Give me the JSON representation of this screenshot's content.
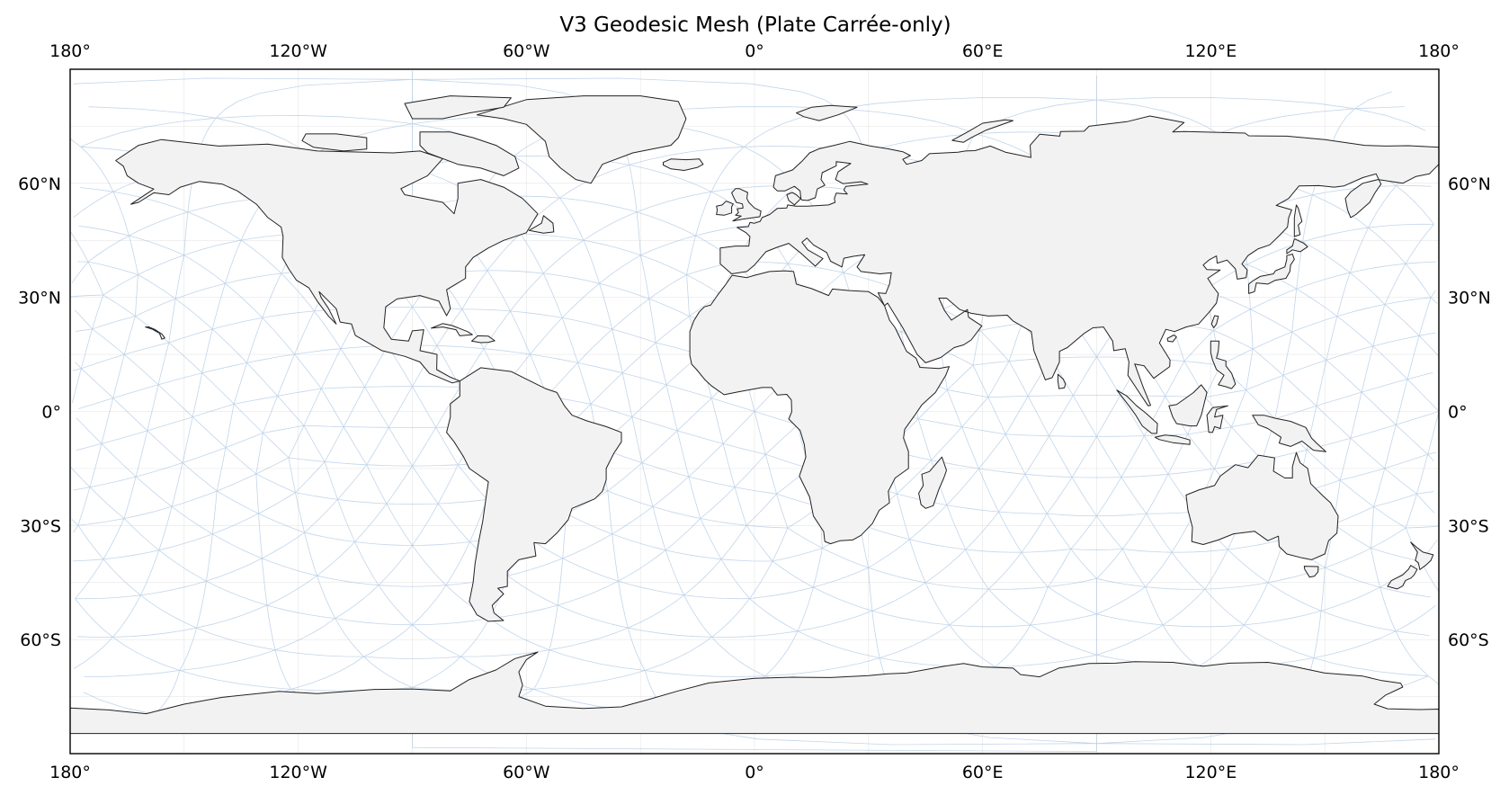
{
  "title": "V3 Geodesic Mesh (Plate Carrée-only)",
  "map": {
    "projection": "Plate Carrée",
    "lon_range": [
      -180,
      180
    ],
    "lat_range": [
      -90,
      90
    ],
    "x_ticks": [
      {
        "lon": -180,
        "label": "180°"
      },
      {
        "lon": -120,
        "label": "120°W"
      },
      {
        "lon": -60,
        "label": "60°W"
      },
      {
        "lon": 0,
        "label": "0°"
      },
      {
        "lon": 60,
        "label": "60°E"
      },
      {
        "lon": 120,
        "label": "120°E"
      },
      {
        "lon": 180,
        "label": "180°"
      }
    ],
    "y_ticks": [
      {
        "lat": 60,
        "label": "60°N"
      },
      {
        "lat": 30,
        "label": "30°N"
      },
      {
        "lat": 0,
        "label": "0°"
      },
      {
        "lat": -30,
        "label": "30°S"
      },
      {
        "lat": -60,
        "label": "60°S"
      }
    ],
    "colors": {
      "land": "#f2f2f2",
      "coastline": "#222222",
      "mesh": "#8fb3d9",
      "frame": "#000000"
    }
  }
}
